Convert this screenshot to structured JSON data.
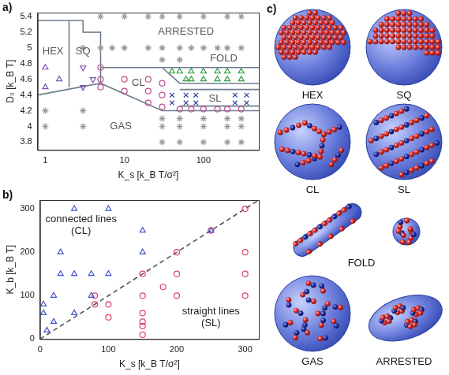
{
  "chart_data": [
    {
      "type": "scatter",
      "panel": "a)",
      "x_label": "K_s [k_B T/σ²]",
      "y_label": "D₀ [k_B T]",
      "log": "x",
      "grid": false,
      "xlim": [
        0.8,
        500
      ],
      "xticks": [
        1,
        10,
        100
      ],
      "ylim": [
        3.7,
        5.45
      ],
      "yticks": [
        3.8,
        4,
        4.2,
        4.4,
        4.6,
        4.8,
        5,
        5.2,
        5.4
      ],
      "series": [
        {
          "color": "#9a9a9a",
          "marker": "asterisk",
          "x": [
            5,
            10,
            20,
            30,
            50,
            100,
            200,
            300,
            3,
            5,
            7,
            10,
            20,
            30,
            50,
            70,
            100,
            150,
            200,
            300,
            30,
            50
          ],
          "y": [
            5.4,
            5.4,
            5.4,
            5.4,
            5.4,
            5.4,
            5.4,
            5.4,
            5,
            5,
            5,
            5,
            5,
            5,
            5,
            5,
            5,
            5,
            5,
            5,
            4.85,
            4.85
          ]
        },
        {
          "color": "#9a9a9a",
          "marker": "asterisk",
          "x": [
            1,
            3,
            1,
            3,
            30,
            50,
            100,
            200,
            300,
            30,
            50,
            100,
            200,
            300,
            30,
            50,
            100,
            200,
            300
          ],
          "y": [
            4.2,
            4.2,
            4,
            4,
            4.1,
            4.1,
            4.1,
            4.1,
            4.1,
            4,
            4,
            4,
            4,
            4,
            3.8,
            3.8,
            3.8,
            3.8,
            3.8
          ]
        },
        {
          "color": "#7b4fb0",
          "marker": "triangle",
          "x": [
            1,
            1.5,
            1
          ],
          "y": [
            4.5,
            4.6,
            4.75
          ]
        },
        {
          "color": "#7b4fb0",
          "marker": "triangle_down",
          "x": [
            3,
            4,
            3
          ],
          "y": [
            4.5,
            4.6,
            4.75
          ]
        },
        {
          "color": "#c0508f",
          "marker": "circle",
          "x": [
            5,
            5,
            5,
            10,
            10,
            20,
            20,
            20,
            30,
            30,
            30,
            50,
            70,
            100,
            150,
            200,
            300
          ],
          "y": [
            4.5,
            4.6,
            4.75,
            4.45,
            4.6,
            4.3,
            4.45,
            4.6,
            4.25,
            4.4,
            4.55,
            4.22,
            4.22,
            4.22,
            4.22,
            4.22,
            4.22
          ]
        },
        {
          "color": "#3344aa",
          "marker": "cross",
          "x": [
            40,
            60,
            80,
            250,
            350,
            40,
            60,
            80,
            250,
            350
          ],
          "y": [
            4.3,
            4.3,
            4.3,
            4.3,
            4.3,
            4.4,
            4.4,
            4.4,
            4.4,
            4.4
          ]
        },
        {
          "color": "#2e9e3a",
          "marker": "triangle",
          "x": [
            40,
            50,
            70,
            100,
            150,
            200,
            300,
            60,
            70,
            100,
            150,
            200,
            300
          ],
          "y": [
            4.7,
            4.7,
            4.7,
            4.7,
            4.7,
            4.7,
            4.7,
            4.6,
            4.6,
            4.6,
            4.6,
            4.6,
            4.6
          ]
        }
      ],
      "boundaries": [
        {
          "color": "#6f7f8f",
          "x": [
            0.8,
            5,
            30,
            500
          ],
          "y": [
            4.4,
            4.55,
            4.2,
            4.2
          ]
        },
        {
          "color": "#6f7f8f",
          "x": [
            0.8,
            3,
            3,
            5,
            5,
            500
          ],
          "y": [
            5.35,
            5.35,
            5.2,
            5.2,
            4.75,
            4.75
          ]
        },
        {
          "color": "#6f7f8f",
          "x": [
            2,
            2
          ],
          "y": [
            4.5,
            5.35
          ]
        },
        {
          "color": "#6f7f8f",
          "x": [
            5,
            5
          ],
          "y": [
            4.55,
            4.75
          ]
        },
        {
          "color": "#6f7f8f",
          "x": [
            30,
            50,
            500
          ],
          "y": [
            4.75,
            4.55,
            4.55
          ]
        },
        {
          "color": "#6f7f8f",
          "x": [
            50,
            500
          ],
          "y": [
            4.47,
            4.47
          ]
        },
        {
          "color": "#6f7f8f",
          "x": [
            50,
            500
          ],
          "y": [
            4.26,
            4.26
          ]
        }
      ],
      "annotations": [
        {
          "text": [
            "HEX"
          ],
          "x": 1.25,
          "y": 4.95
        },
        {
          "text": [
            "SQ"
          ],
          "x": 3,
          "y": 4.95
        },
        {
          "text": [
            "CL"
          ],
          "x": 15,
          "y": 4.55
        },
        {
          "text": [
            "SL"
          ],
          "x": 140,
          "y": 4.35
        },
        {
          "text": [
            "FOLD"
          ],
          "x": 180,
          "y": 4.86
        },
        {
          "text": [
            "ARRESTED"
          ],
          "x": 60,
          "y": 5.2
        },
        {
          "text": [
            "GAS"
          ],
          "x": 9,
          "y": 4.0
        }
      ]
    },
    {
      "type": "scatter",
      "panel": "b)",
      "x_label": "K_s [k_B T/σ²]",
      "y_label": "K_b [k_B T]",
      "grid": false,
      "xlim": [
        0,
        320
      ],
      "xticks": [
        0,
        100,
        200,
        300
      ],
      "ylim": [
        0,
        320
      ],
      "yticks": [
        0,
        100,
        200,
        300
      ],
      "series": [
        {
          "color": "#4455cc",
          "marker": "triangle",
          "x": [
            5,
            5,
            10,
            20,
            20,
            30,
            30,
            50,
            50,
            50,
            75,
            75,
            100,
            100,
            150,
            150,
            250
          ],
          "y": [
            60,
            80,
            20,
            40,
            100,
            150,
            200,
            150,
            300,
            60,
            150,
            100,
            150,
            300,
            250,
            200,
            250
          ]
        },
        {
          "color": "#dd4466",
          "marker": "circle",
          "x": [
            80,
            80,
            100,
            100,
            150,
            150,
            150,
            150,
            150,
            150,
            180,
            200,
            200,
            200,
            250,
            300,
            300,
            300,
            300
          ],
          "y": [
            80,
            100,
            80,
            50,
            150,
            100,
            60,
            10,
            30,
            40,
            120,
            200,
            150,
            100,
            250,
            300,
            200,
            150,
            100
          ]
        }
      ],
      "boundaries": [
        {
          "color": "#555555",
          "line_style": "dashed",
          "x": [
            0,
            320
          ],
          "y": [
            0,
            320
          ]
        }
      ],
      "annotations": [
        {
          "text": [
            "connected lines",
            "(CL)"
          ],
          "x": 60,
          "y": 262
        },
        {
          "text": [
            "straight lines",
            "(SL)"
          ],
          "x": 250,
          "y": 50
        }
      ]
    }
  ],
  "snapshots": {
    "panel": "c)",
    "labels": [
      "HEX",
      "SQ",
      "CL",
      "SL",
      "FOLD",
      "GAS",
      "ARRESTED"
    ]
  }
}
